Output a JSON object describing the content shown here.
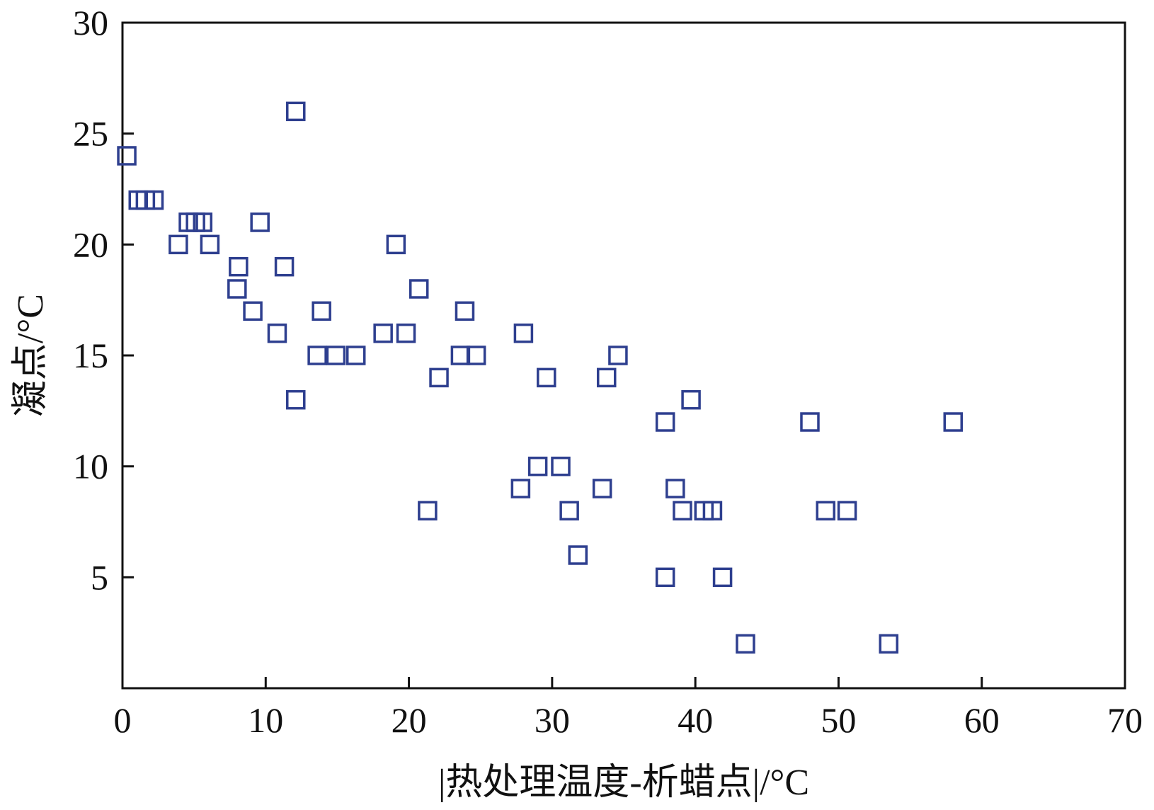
{
  "chart_data": {
    "type": "scatter",
    "xlabel": "|热处理温度-析蜡点|/°C",
    "ylabel": "凝点/°C",
    "xlim": [
      0,
      70
    ],
    "ylim": [
      0,
      30
    ],
    "xticks": [
      0,
      10,
      20,
      30,
      40,
      50,
      60,
      70
    ],
    "yticks": [
      5,
      10,
      15,
      20,
      25,
      30
    ],
    "grid": false,
    "marker": "open-square",
    "colors": {
      "marker": "#2e3f8f",
      "axis": "#111111"
    },
    "points": [
      {
        "x": 0.3,
        "y": 24
      },
      {
        "x": 1.1,
        "y": 22
      },
      {
        "x": 1.6,
        "y": 22
      },
      {
        "x": 2.2,
        "y": 22
      },
      {
        "x": 3.9,
        "y": 20
      },
      {
        "x": 4.6,
        "y": 21
      },
      {
        "x": 5.1,
        "y": 21
      },
      {
        "x": 5.6,
        "y": 21
      },
      {
        "x": 6.1,
        "y": 20
      },
      {
        "x": 8.1,
        "y": 19
      },
      {
        "x": 8.0,
        "y": 18
      },
      {
        "x": 9.1,
        "y": 17
      },
      {
        "x": 9.6,
        "y": 21
      },
      {
        "x": 10.8,
        "y": 16
      },
      {
        "x": 11.3,
        "y": 19
      },
      {
        "x": 12.1,
        "y": 26
      },
      {
        "x": 12.1,
        "y": 13
      },
      {
        "x": 13.6,
        "y": 15
      },
      {
        "x": 13.9,
        "y": 17
      },
      {
        "x": 14.9,
        "y": 15
      },
      {
        "x": 16.3,
        "y": 15
      },
      {
        "x": 18.2,
        "y": 16
      },
      {
        "x": 19.1,
        "y": 20
      },
      {
        "x": 19.8,
        "y": 16
      },
      {
        "x": 20.7,
        "y": 18
      },
      {
        "x": 21.3,
        "y": 8
      },
      {
        "x": 22.1,
        "y": 14
      },
      {
        "x": 23.6,
        "y": 15
      },
      {
        "x": 23.9,
        "y": 17
      },
      {
        "x": 24.7,
        "y": 15
      },
      {
        "x": 27.8,
        "y": 9
      },
      {
        "x": 28.0,
        "y": 16
      },
      {
        "x": 29.0,
        "y": 10
      },
      {
        "x": 29.6,
        "y": 14
      },
      {
        "x": 30.6,
        "y": 10
      },
      {
        "x": 31.2,
        "y": 8
      },
      {
        "x": 31.8,
        "y": 6
      },
      {
        "x": 33.5,
        "y": 9
      },
      {
        "x": 33.8,
        "y": 14
      },
      {
        "x": 34.6,
        "y": 15
      },
      {
        "x": 37.9,
        "y": 12
      },
      {
        "x": 37.9,
        "y": 5
      },
      {
        "x": 38.6,
        "y": 9
      },
      {
        "x": 39.1,
        "y": 8
      },
      {
        "x": 39.7,
        "y": 13
      },
      {
        "x": 40.6,
        "y": 8
      },
      {
        "x": 41.2,
        "y": 8
      },
      {
        "x": 41.9,
        "y": 5
      },
      {
        "x": 43.5,
        "y": 2
      },
      {
        "x": 48.0,
        "y": 12
      },
      {
        "x": 49.1,
        "y": 8
      },
      {
        "x": 50.6,
        "y": 8
      },
      {
        "x": 53.5,
        "y": 2
      },
      {
        "x": 58.0,
        "y": 12
      }
    ]
  }
}
